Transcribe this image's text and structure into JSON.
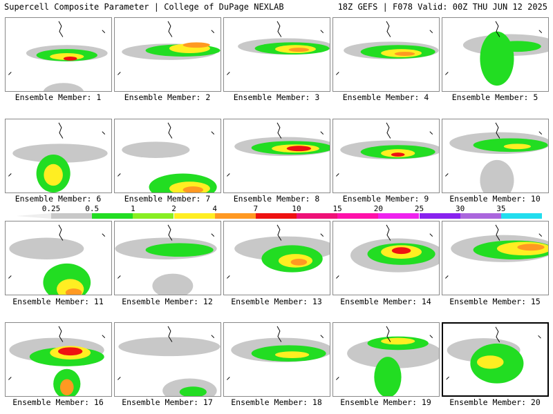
{
  "header": {
    "left_title": "Supercell Composite Parameter | College of DuPage NEXLAB",
    "right_title": "18Z GEFS | F078 Valid: 00Z THU JUN 12 2025"
  },
  "members": [
    {
      "label": "Ensemble Member: 1"
    },
    {
      "label": "Ensemble Member: 2"
    },
    {
      "label": "Ensemble Member: 3"
    },
    {
      "label": "Ensemble Member: 4"
    },
    {
      "label": "Ensemble Member: 5"
    },
    {
      "label": "Ensemble Member: 6"
    },
    {
      "label": "Ensemble Member: 7"
    },
    {
      "label": "Ensemble Member: 8"
    },
    {
      "label": "Ensemble Member: 9"
    },
    {
      "label": "Ensemble Member: 10"
    },
    {
      "label": "Ensemble Member: 11"
    },
    {
      "label": "Ensemble Member: 12"
    },
    {
      "label": "Ensemble Member: 13"
    },
    {
      "label": "Ensemble Member: 14"
    },
    {
      "label": "Ensemble Member: 15"
    },
    {
      "label": "Ensemble Member: 16"
    },
    {
      "label": "Ensemble Member: 17"
    },
    {
      "label": "Ensemble Member: 18"
    },
    {
      "label": "Ensemble Member: 19"
    },
    {
      "label": "Ensemble Member: 20"
    }
  ],
  "selected_member": 20,
  "colorbar": {
    "labels": [
      "0.25",
      "0.5",
      "1",
      "2",
      "4",
      "7",
      "10",
      "15",
      "20",
      "25",
      "30",
      "35"
    ],
    "colors": [
      "#c8c8c8",
      "#22dd22",
      "#88ee22",
      "#ffee22",
      "#ff9922",
      "#ee1111",
      "#ee1177",
      "#ff11aa",
      "#ee22ee",
      "#8822ee",
      "#aa66dd",
      "#22ddee"
    ]
  }
}
